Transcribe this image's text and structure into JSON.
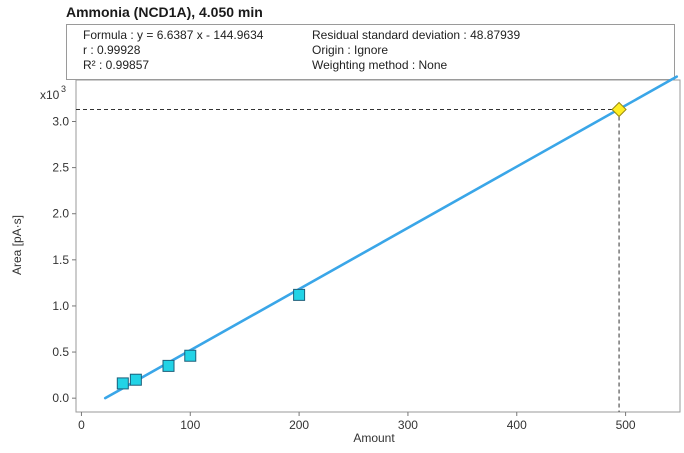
{
  "header": {
    "title": "Ammonia (NCD1A), 4.050 min"
  },
  "info": {
    "formula": "Formula : y = 6.6387 x - 144.9634",
    "r": "r : 0.99928",
    "r2": "R² : 0.99857",
    "rsd": "Residual standard deviation : 48.87939",
    "origin": "Origin : Ignore",
    "weighting": "Weighting method : None"
  },
  "colors": {
    "fit_line": "#3aa6e8",
    "calibration_point": "#22d3e6",
    "sample_point": "#ffee22",
    "guide_line": "#333333"
  },
  "chart_data": {
    "type": "scatter",
    "title": "Ammonia (NCD1A), 4.050 min",
    "xlabel": "Amount",
    "ylabel": "Area [pA·s]",
    "y_multiplier_label": "x10",
    "y_multiplier_exponent": "3",
    "xlim": [
      -5,
      550
    ],
    "ylim": [
      -0.15,
      3.45
    ],
    "x_ticks": [
      0,
      100,
      200,
      300,
      400,
      500
    ],
    "x_tick_labels": [
      "0",
      "100",
      "200",
      "300",
      "400",
      "500"
    ],
    "y_ticks": [
      0.0,
      0.5,
      1.0,
      1.5,
      2.0,
      2.5,
      3.0
    ],
    "y_tick_labels": [
      "0.0",
      "0.5",
      "1.0",
      "1.5",
      "2.0",
      "2.5",
      "3.0"
    ],
    "fit": {
      "slope": 6.6387,
      "intercept": -144.9634,
      "unit_scale": 1000
    },
    "calibration_points": [
      {
        "x": 38,
        "y": 0.16
      },
      {
        "x": 50,
        "y": 0.2
      },
      {
        "x": 80,
        "y": 0.35
      },
      {
        "x": 100,
        "y": 0.46
      },
      {
        "x": 200,
        "y": 1.12
      }
    ],
    "sample_point": {
      "x": 494,
      "y": 3.13
    },
    "grid": false,
    "legend": "none"
  }
}
